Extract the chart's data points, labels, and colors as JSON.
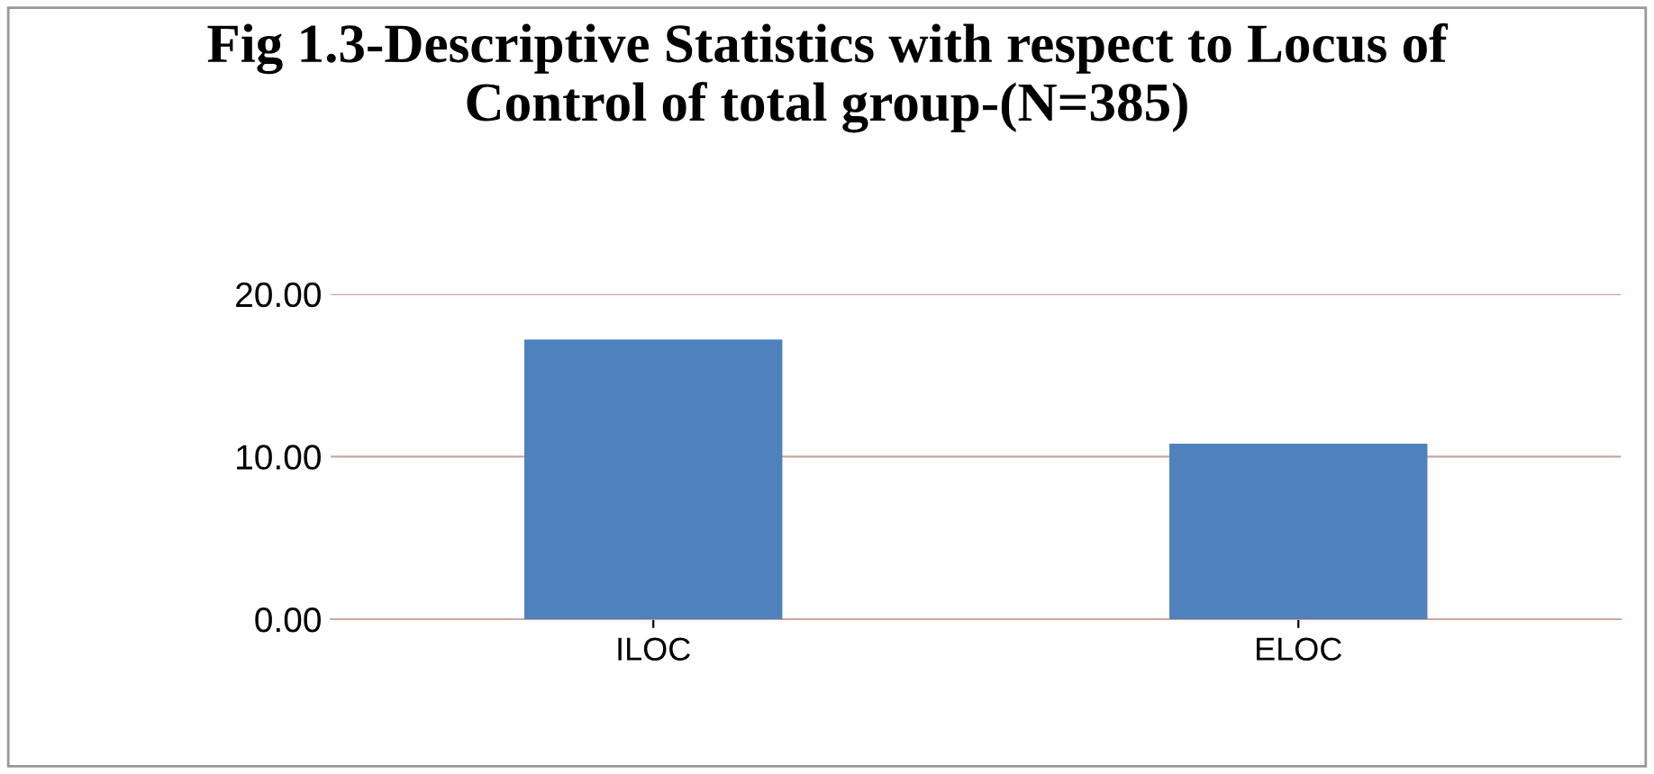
{
  "chart_data": {
    "type": "bar",
    "title": "Fig 1.3-Descriptive Statistics with respect to Locus of\nControl of total group-(N=385)",
    "categories": [
      "ILOC",
      "ELOC"
    ],
    "values": [
      17.2,
      10.8
    ],
    "color": "#4f81bd",
    "ylim": [
      0,
      20
    ],
    "yticks": [
      {
        "value": 0,
        "label": "0.00"
      },
      {
        "value": 10,
        "label": "10.00"
      },
      {
        "value": 20,
        "label": "20.00"
      }
    ],
    "grid": "y",
    "legend": false
  }
}
